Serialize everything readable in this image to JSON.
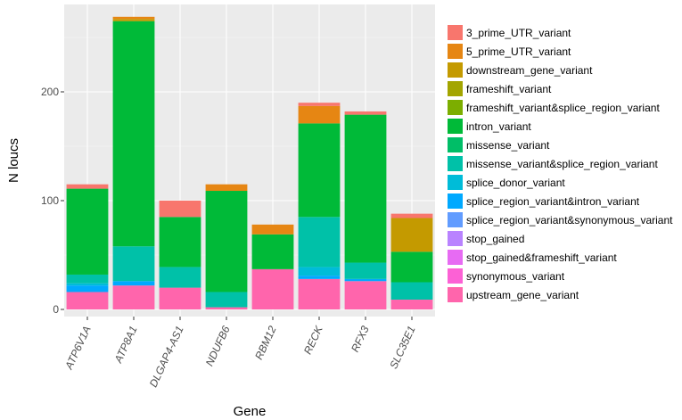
{
  "chart_data": {
    "type": "bar",
    "stacked": true,
    "title": "",
    "xlabel": "Gene",
    "ylabel": "N loucs",
    "ylim": [
      0,
      280
    ],
    "yticks": [
      0,
      100,
      200
    ],
    "grid": true,
    "legend_position": "right",
    "categories": [
      "ATP6V1A",
      "ATP8A1",
      "DLGAP4-AS1",
      "NDUFB6",
      "RBM12",
      "RECK",
      "RFX3",
      "SLC35E1"
    ],
    "series": [
      {
        "name": "upstream_gene_variant",
        "color": "#FF65AC",
        "values": [
          16,
          22,
          20,
          2,
          37,
          28,
          26,
          9
        ]
      },
      {
        "name": "synonymous_variant",
        "color": "#FC61D5",
        "values": [
          0,
          0,
          0,
          0,
          0,
          0,
          0,
          0
        ]
      },
      {
        "name": "stop_gained&frameshift_variant",
        "color": "#E76BF3",
        "values": [
          0,
          0,
          0,
          0,
          0,
          0,
          0,
          0
        ]
      },
      {
        "name": "stop_gained",
        "color": "#B983FF",
        "values": [
          0,
          0,
          0,
          0,
          0,
          0,
          0,
          0
        ]
      },
      {
        "name": "splice_region_variant&synonymous_variant",
        "color": "#619CFF",
        "values": [
          0,
          0,
          0,
          0,
          0,
          0,
          0,
          0
        ]
      },
      {
        "name": "splice_region_variant&intron_variant",
        "color": "#00A9FF",
        "values": [
          6,
          4,
          0,
          0,
          0,
          3,
          2,
          0
        ]
      },
      {
        "name": "splice_donor_variant",
        "color": "#00BCD8",
        "values": [
          2,
          0,
          0,
          0,
          0,
          8,
          0,
          0
        ]
      },
      {
        "name": "missense_variant&splice_region_variant",
        "color": "#00C1A8",
        "values": [
          8,
          32,
          19,
          14,
          0,
          46,
          15,
          16
        ]
      },
      {
        "name": "missense_variant",
        "color": "#00BE67",
        "values": [
          0,
          0,
          0,
          0,
          0,
          0,
          0,
          0
        ]
      },
      {
        "name": "intron_variant",
        "color": "#00BA38",
        "values": [
          79,
          207,
          46,
          93,
          32,
          86,
          136,
          28
        ]
      },
      {
        "name": "frameshift_variant&splice_region_variant",
        "color": "#7CAE00",
        "values": [
          0,
          0,
          0,
          0,
          0,
          0,
          0,
          0
        ]
      },
      {
        "name": "frameshift_variant",
        "color": "#A3A500",
        "values": [
          0,
          0,
          0,
          0,
          0,
          0,
          0,
          0
        ]
      },
      {
        "name": "downstream_gene_variant",
        "color": "#C49A00",
        "values": [
          0,
          2,
          0,
          0,
          0,
          0,
          0,
          31
        ]
      },
      {
        "name": "5_prime_UTR_variant",
        "color": "#E68613",
        "values": [
          0,
          2,
          0,
          6,
          9,
          16,
          0,
          0
        ]
      },
      {
        "name": "3_prime_UTR_variant",
        "color": "#F8766D",
        "values": [
          4,
          0,
          15,
          0,
          0,
          3,
          3,
          4
        ]
      }
    ],
    "legend": [
      {
        "name": "3_prime_UTR_variant",
        "color": "#F8766D"
      },
      {
        "name": "5_prime_UTR_variant",
        "color": "#E68613"
      },
      {
        "name": "downstream_gene_variant",
        "color": "#C49A00"
      },
      {
        "name": "frameshift_variant",
        "color": "#A3A500"
      },
      {
        "name": "frameshift_variant&splice_region_variant",
        "color": "#7CAE00"
      },
      {
        "name": "intron_variant",
        "color": "#00BA38"
      },
      {
        "name": "missense_variant",
        "color": "#00BE67"
      },
      {
        "name": "missense_variant&splice_region_variant",
        "color": "#00C1A8"
      },
      {
        "name": "splice_donor_variant",
        "color": "#00BCD8"
      },
      {
        "name": "splice_region_variant&intron_variant",
        "color": "#00A9FF"
      },
      {
        "name": "splice_region_variant&synonymous_variant",
        "color": "#619CFF"
      },
      {
        "name": "stop_gained",
        "color": "#B983FF"
      },
      {
        "name": "stop_gained&frameshift_variant",
        "color": "#E76BF3"
      },
      {
        "name": "synonymous_variant",
        "color": "#FC61D5"
      },
      {
        "name": "upstream_gene_variant",
        "color": "#FF65AC"
      }
    ]
  }
}
